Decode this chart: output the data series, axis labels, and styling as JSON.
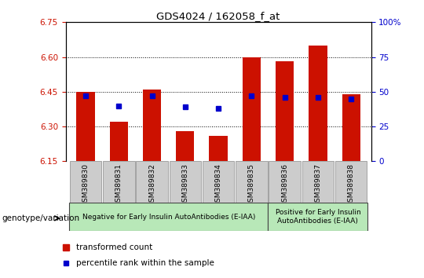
{
  "title": "GDS4024 / 162058_f_at",
  "samples": [
    "GSM389830",
    "GSM389831",
    "GSM389832",
    "GSM389833",
    "GSM389834",
    "GSM389835",
    "GSM389836",
    "GSM389837",
    "GSM389838"
  ],
  "bar_values": [
    6.45,
    6.32,
    6.46,
    6.28,
    6.26,
    6.6,
    6.58,
    6.65,
    6.44
  ],
  "dot_values": [
    47,
    40,
    47,
    39,
    38,
    47,
    46,
    46,
    45
  ],
  "ylim_left": [
    6.15,
    6.75
  ],
  "ylim_right": [
    0,
    100
  ],
  "yticks_left": [
    6.15,
    6.3,
    6.45,
    6.6,
    6.75
  ],
  "yticks_right": [
    0,
    25,
    50,
    75,
    100
  ],
  "ytick_labels_right": [
    "0",
    "25",
    "50",
    "75",
    "100%"
  ],
  "grid_values": [
    6.3,
    6.45,
    6.6
  ],
  "bar_color": "#cc1100",
  "dot_color": "#0000cc",
  "bar_bottom": 6.15,
  "group1_label": "Negative for Early Insulin AutoAntibodies (E-IAA)",
  "group1_indices": [
    0,
    1,
    2,
    3,
    4,
    5
  ],
  "group2_label": "Positive for Early Insulin\nAutoAntibodies (E-IAA)",
  "group2_indices": [
    6,
    7,
    8
  ],
  "group_bg_color": "#b8e8b8",
  "tick_label_color_left": "#cc1100",
  "tick_label_color_right": "#0000cc",
  "genotype_label": "genotype/variation",
  "legend_bar_label": "transformed count",
  "legend_dot_label": "percentile rank within the sample",
  "xticklabel_bg": "#cccccc",
  "bg_color": "#ffffff"
}
